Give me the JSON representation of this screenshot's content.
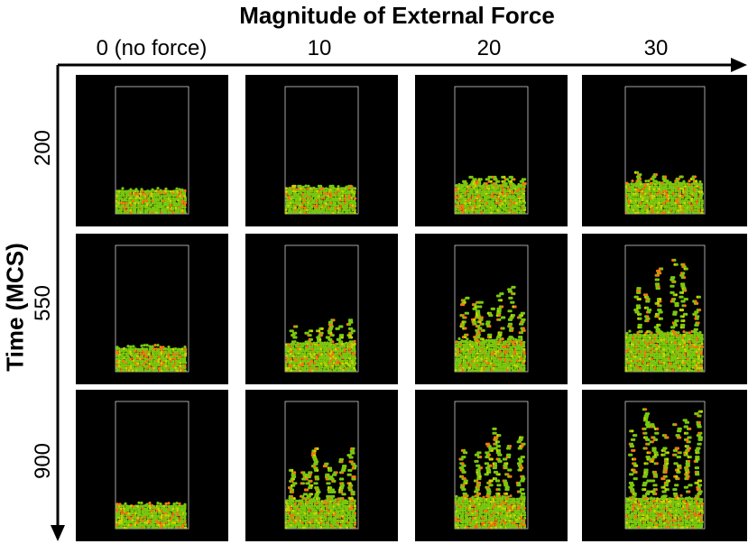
{
  "title": "Magnitude of External Force",
  "y_axis_title": "Time (MCS)",
  "columns": [
    "0 (no force)",
    "10",
    "20",
    "30"
  ],
  "rows": [
    "200",
    "550",
    "900"
  ],
  "colors": {
    "panel_bg": "#000000",
    "container_border": "#cccccc",
    "particle_green": "#7ac70f",
    "particle_orange": "#f07a12",
    "particle_yellow": "#c9d400"
  }
}
